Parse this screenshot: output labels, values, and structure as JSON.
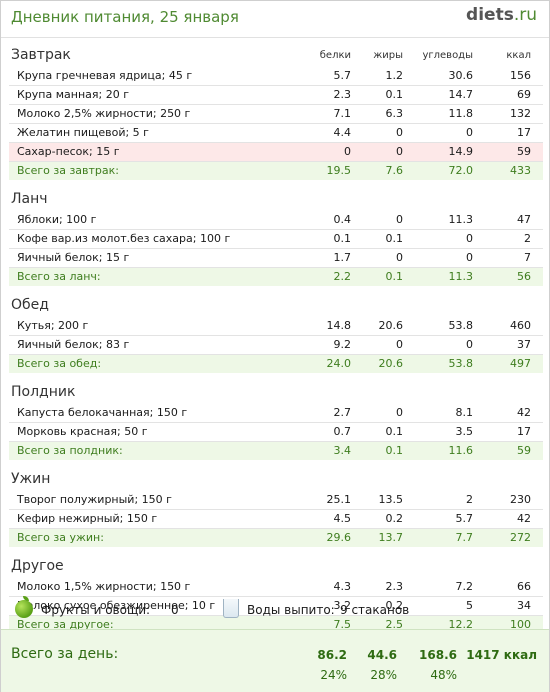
{
  "header": {
    "title": "Дневник питания, 25 января",
    "brand_name": "diets",
    "brand_tld": ".ru"
  },
  "columns": {
    "protein": "белки",
    "fat": "жиры",
    "carbs": "углеводы",
    "kcal": "ккал"
  },
  "meals": [
    {
      "title": "Завтрак",
      "items": [
        {
          "name": "Крупа гречневая ядрица; 45 г",
          "protein": "5.7",
          "fat": "1.2",
          "carbs": "30.6",
          "kcal": "156"
        },
        {
          "name": "Крупа манная; 20 г",
          "protein": "2.3",
          "fat": "0.1",
          "carbs": "14.7",
          "kcal": "69"
        },
        {
          "name": "Молоко 2,5% жирности; 250 г",
          "protein": "7.1",
          "fat": "6.3",
          "carbs": "11.8",
          "kcal": "132"
        },
        {
          "name": "Желатин пищевой; 5 г",
          "protein": "4.4",
          "fat": "0",
          "carbs": "0",
          "kcal": "17"
        },
        {
          "name": "Сахар-песок; 15 г",
          "protein": "0",
          "fat": "0",
          "carbs": "14.9",
          "kcal": "59",
          "highlight": true
        }
      ],
      "total": {
        "label": "Всего за завтрак:",
        "protein": "19.5",
        "fat": "7.6",
        "carbs": "72.0",
        "kcal": "433"
      }
    },
    {
      "title": "Ланч",
      "items": [
        {
          "name": "Яблоки; 100 г",
          "protein": "0.4",
          "fat": "0",
          "carbs": "11.3",
          "kcal": "47"
        },
        {
          "name": "Кофе вар.из молот.без сахара; 100 г",
          "protein": "0.1",
          "fat": "0.1",
          "carbs": "0",
          "kcal": "2"
        },
        {
          "name": "Яичный белок; 15 г",
          "protein": "1.7",
          "fat": "0",
          "carbs": "0",
          "kcal": "7"
        }
      ],
      "total": {
        "label": "Всего за ланч:",
        "protein": "2.2",
        "fat": "0.1",
        "carbs": "11.3",
        "kcal": "56"
      }
    },
    {
      "title": "Обед",
      "items": [
        {
          "name": "Кутья; 200 г",
          "protein": "14.8",
          "fat": "20.6",
          "carbs": "53.8",
          "kcal": "460"
        },
        {
          "name": "Яичный белок; 83 г",
          "protein": "9.2",
          "fat": "0",
          "carbs": "0",
          "kcal": "37"
        }
      ],
      "total": {
        "label": "Всего за обед:",
        "protein": "24.0",
        "fat": "20.6",
        "carbs": "53.8",
        "kcal": "497"
      }
    },
    {
      "title": "Полдник",
      "items": [
        {
          "name": "Капуста белокачанная; 150 г",
          "protein": "2.7",
          "fat": "0",
          "carbs": "8.1",
          "kcal": "42"
        },
        {
          "name": "Морковь красная; 50 г",
          "protein": "0.7",
          "fat": "0.1",
          "carbs": "3.5",
          "kcal": "17"
        }
      ],
      "total": {
        "label": "Всего за полдник:",
        "protein": "3.4",
        "fat": "0.1",
        "carbs": "11.6",
        "kcal": "59"
      }
    },
    {
      "title": "Ужин",
      "items": [
        {
          "name": "Творог полужирный; 150 г",
          "protein": "25.1",
          "fat": "13.5",
          "carbs": "2",
          "kcal": "230"
        },
        {
          "name": "Кефир нежирный; 150 г",
          "protein": "4.5",
          "fat": "0.2",
          "carbs": "5.7",
          "kcal": "42"
        }
      ],
      "total": {
        "label": "Всего за ужин:",
        "protein": "29.6",
        "fat": "13.7",
        "carbs": "7.7",
        "kcal": "272"
      }
    },
    {
      "title": "Другое",
      "items": [
        {
          "name": "Молоко 1,5% жирности; 150 г",
          "protein": "4.3",
          "fat": "2.3",
          "carbs": "7.2",
          "kcal": "66"
        },
        {
          "name": "Молоко сухое обезжиренное; 10 г",
          "protein": "3.2",
          "fat": "0.2",
          "carbs": "5",
          "kcal": "34"
        }
      ],
      "total": {
        "label": "Всего за другое:",
        "protein": "7.5",
        "fat": "2.5",
        "carbs": "12.2",
        "kcal": "100"
      }
    }
  ],
  "extras": {
    "fruits_label": "Фрукты и овощи:",
    "fruits_value": "0",
    "water_label": "Воды выпито:",
    "water_value": "9 стаканов",
    "fruit_icon": "apple-icon",
    "water_icon": "glass-icon"
  },
  "day_total": {
    "label": "Всего за день:",
    "protein": "86.2",
    "fat": "44.6",
    "carbs": "168.6",
    "kcal": "1417 ккал",
    "protein_pct": "24%",
    "fat_pct": "28%",
    "carbs_pct": "48%"
  },
  "colors": {
    "accent": "#4f8a32",
    "total_bg": "#eef8e6",
    "alert_bg": "#fde8e8"
  }
}
